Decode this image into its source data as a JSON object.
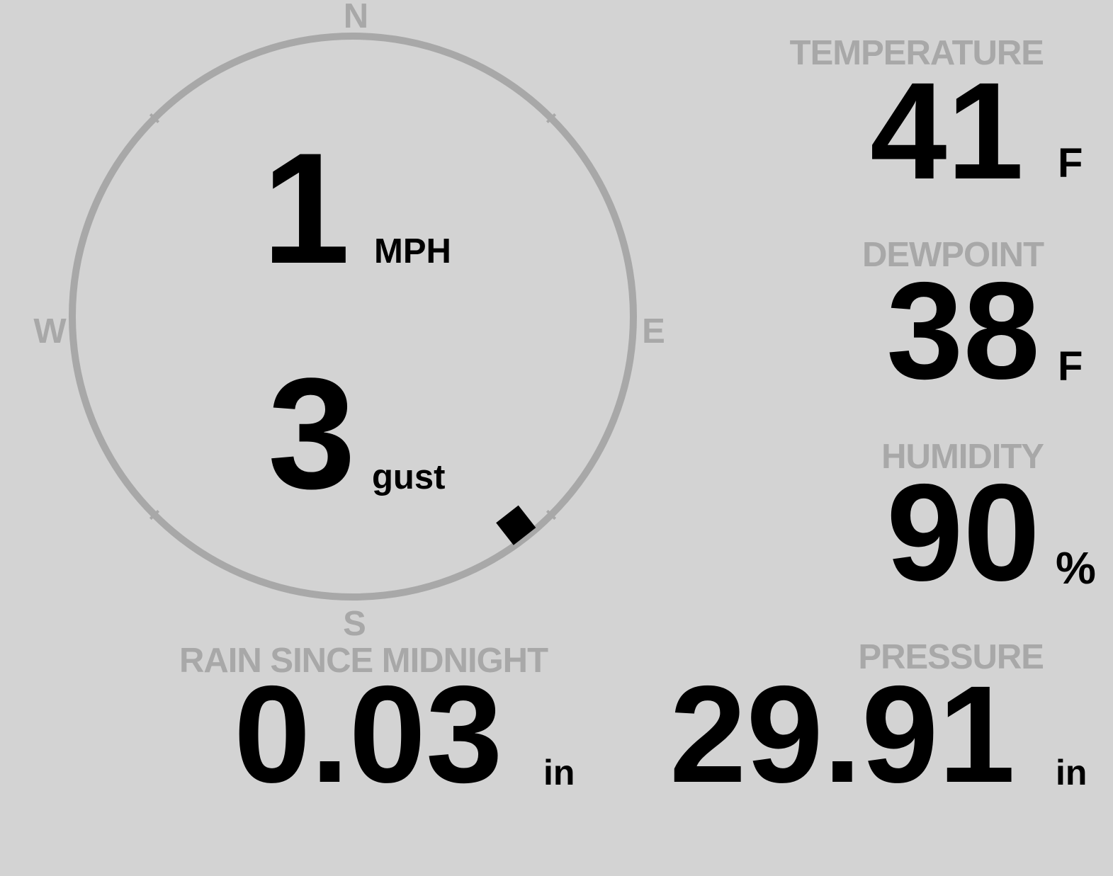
{
  "wind": {
    "speed": "1",
    "speed_unit": "MPH",
    "gust": "3",
    "gust_label": "gust",
    "direction_deg": 142,
    "compass": {
      "n": "N",
      "e": "E",
      "s": "S",
      "w": "W"
    }
  },
  "temperature": {
    "label": "TEMPERATURE",
    "value": "41",
    "unit": "F"
  },
  "dewpoint": {
    "label": "DEWPOINT",
    "value": "38",
    "unit": "F"
  },
  "humidity": {
    "label": "HUMIDITY",
    "value": "90",
    "unit": "%"
  },
  "rain": {
    "label": "RAIN SINCE MIDNIGHT",
    "value": "0.03",
    "unit": "in"
  },
  "pressure": {
    "label": "PRESSURE",
    "value": "29.91",
    "unit": "in"
  },
  "colors": {
    "background": "#d3d3d3",
    "label": "#a8a8a8",
    "value": "#000000"
  }
}
